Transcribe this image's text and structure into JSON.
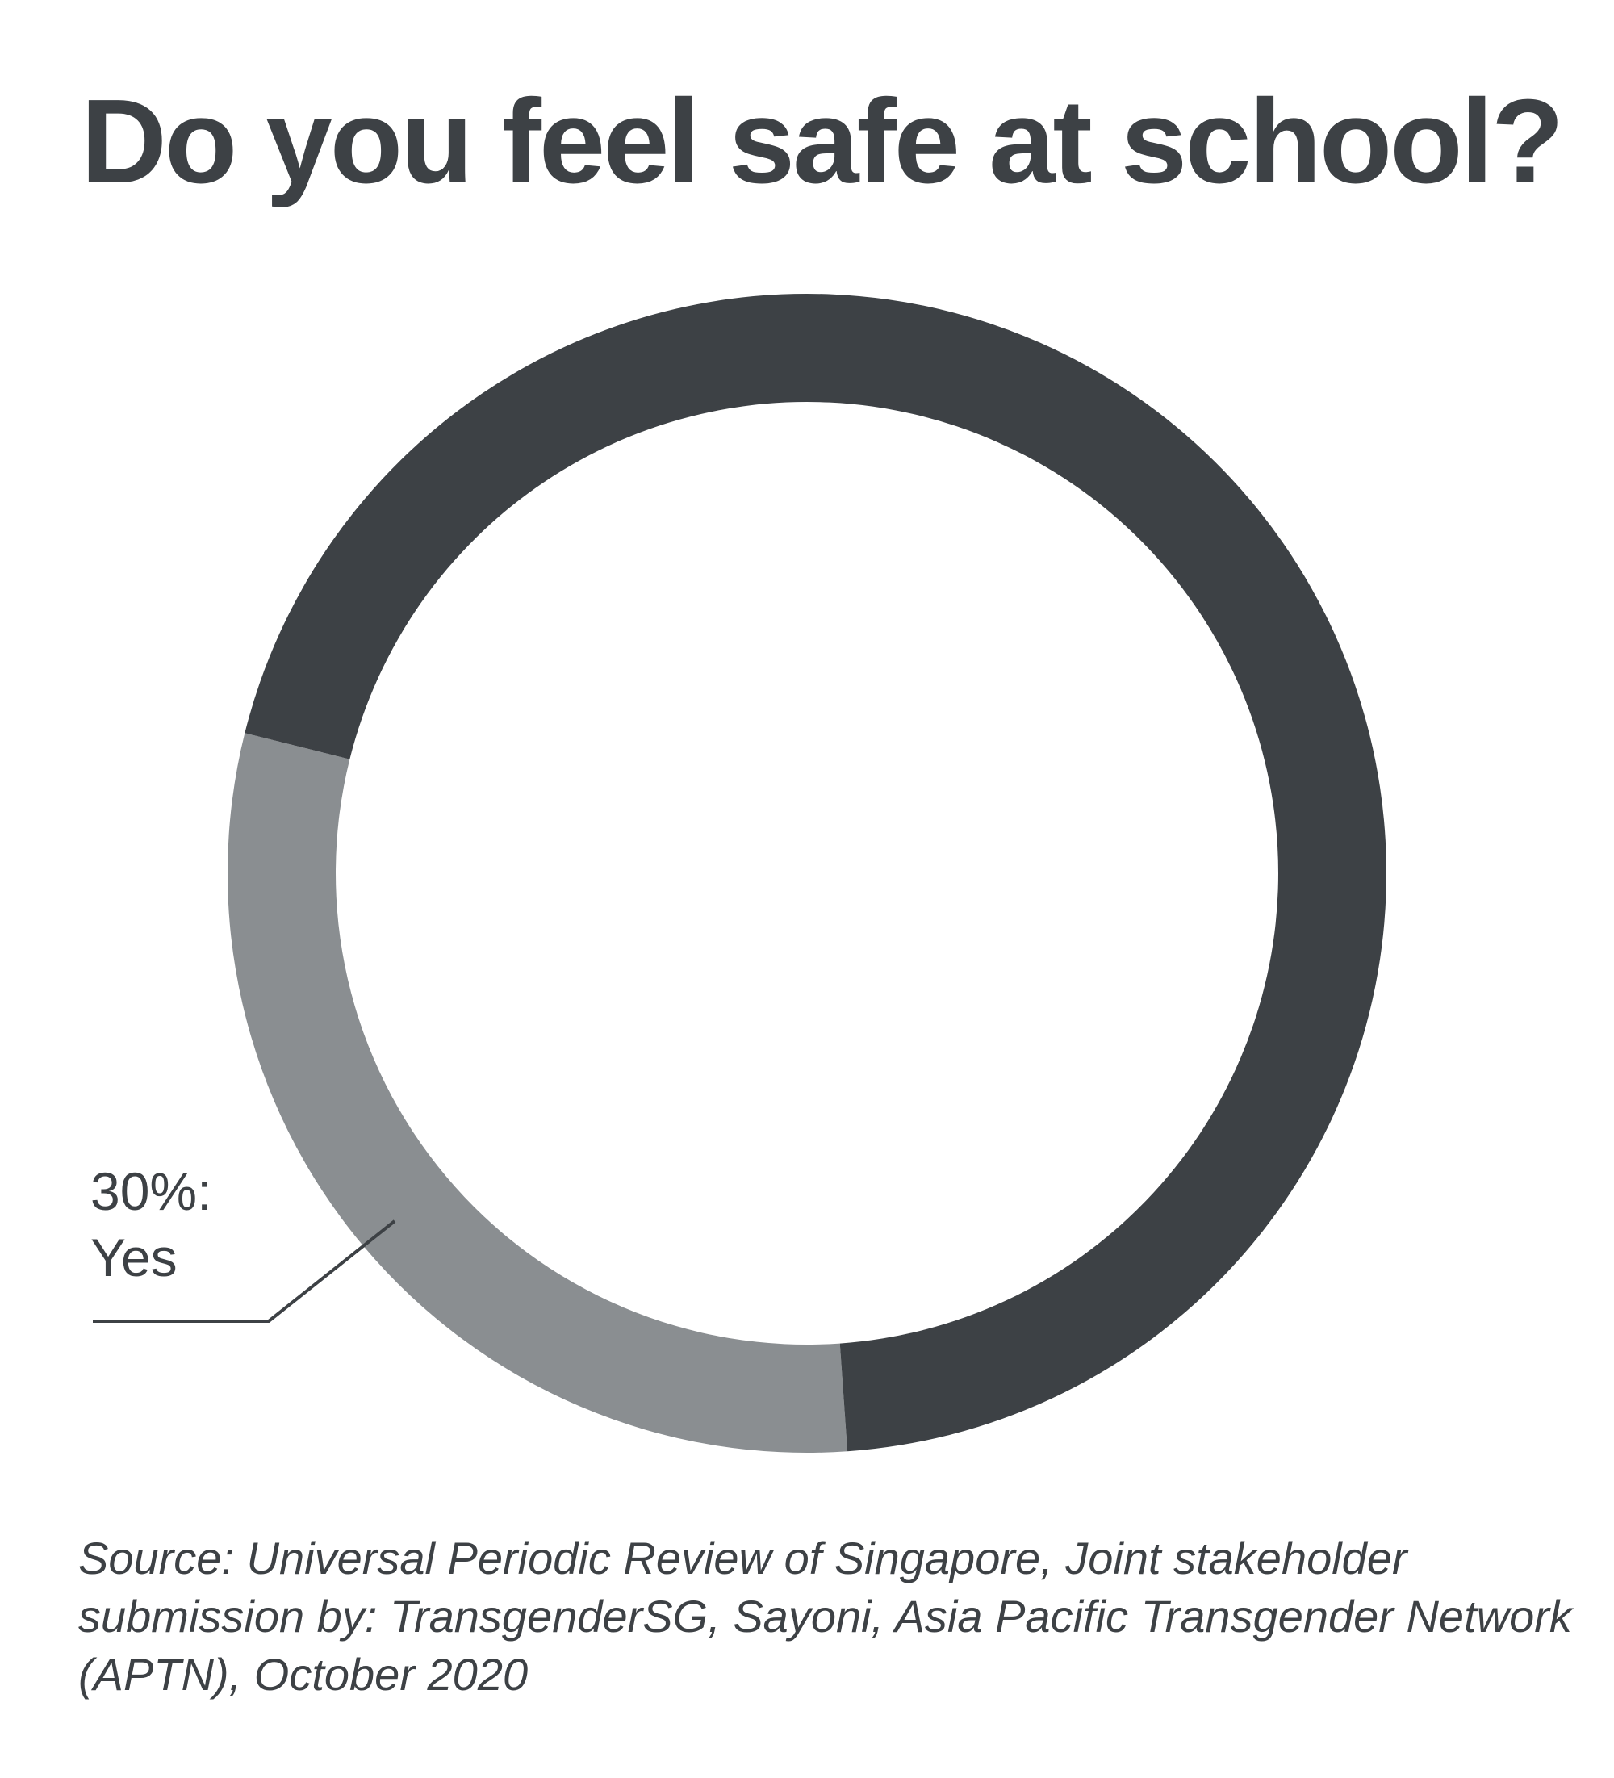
{
  "chart_data": {
    "type": "pie",
    "variant": "donut",
    "title": "Do you feel safe at school?",
    "slices": [
      {
        "label": "Yes",
        "value": 30,
        "color": "#8a8e91"
      },
      {
        "label": "",
        "value": 70,
        "color": "#3d4145"
      }
    ],
    "annotations": [
      {
        "value_text": "30%:",
        "label_text": "Yes"
      }
    ],
    "source": "Source: Universal Periodic Review of Singapore, Joint stakeholder submission by: TransgenderSG, Sayoni, Asia Pacific Transgender Network (APTN), October 2020"
  }
}
